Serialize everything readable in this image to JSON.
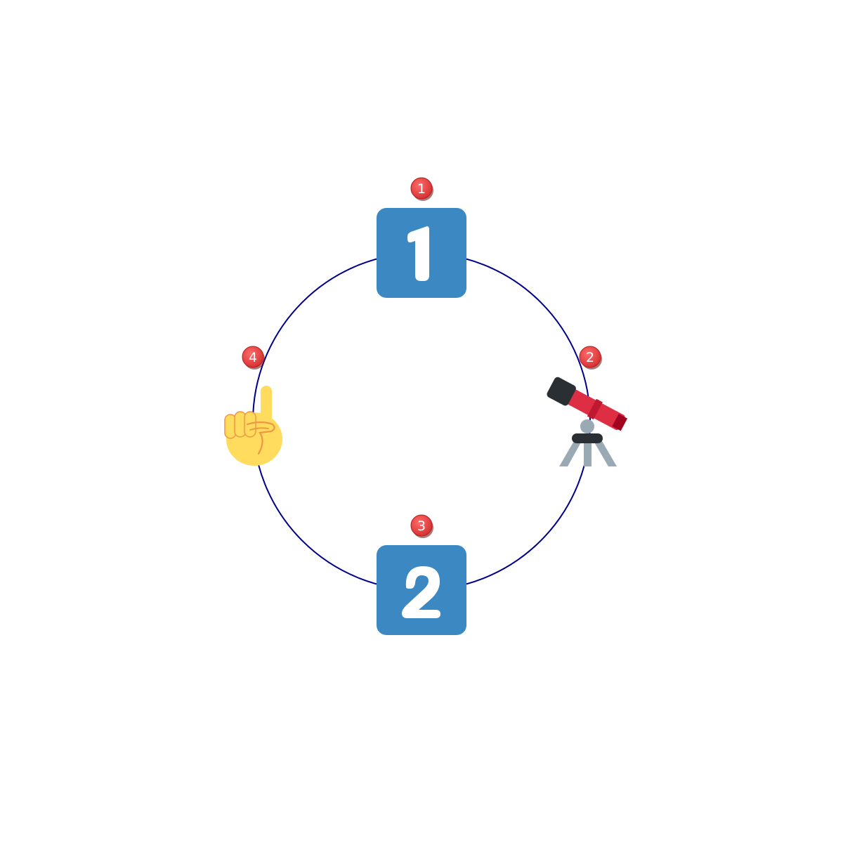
{
  "cycle": {
    "ring_color": "#00008b",
    "badge_color": "#e53935",
    "nodes": [
      {
        "step": "1",
        "icon": "keycap-1-icon",
        "keycap_label": "1"
      },
      {
        "step": "2",
        "icon": "telescope-icon"
      },
      {
        "step": "3",
        "icon": "keycap-2-icon",
        "keycap_label": "2"
      },
      {
        "step": "4",
        "icon": "index-pointing-up-icon"
      }
    ]
  }
}
